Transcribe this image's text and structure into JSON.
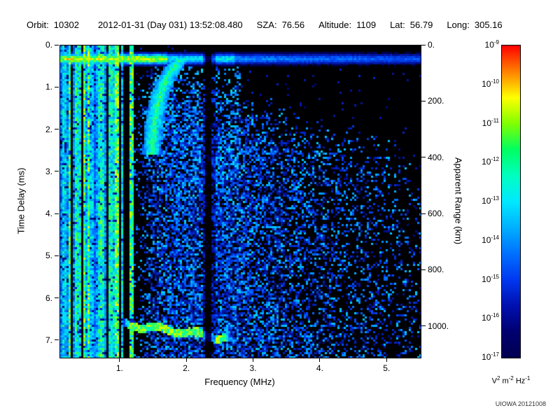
{
  "header": {
    "fields": [
      {
        "label": "Orbit:",
        "value": "10302"
      },
      {
        "label": "",
        "value": "2012-01-31 (Day 031) 13:52:08.480"
      },
      {
        "label": "SZA:",
        "value": "76.56"
      },
      {
        "label": "Altitude:",
        "value": "1109"
      },
      {
        "label": "Lat:",
        "value": "56.79"
      },
      {
        "label": "Long:",
        "value": "305.16"
      }
    ]
  },
  "chart_data": {
    "type": "heatmap",
    "title": "",
    "xlabel": "Frequency (MHz)",
    "ylabel_left": "Time Delay (ms)",
    "ylabel_right": "Apparent Range (km)",
    "x_range_mhz": [
      0.1,
      5.5
    ],
    "x_ticks": [
      {
        "value": 1,
        "label": "1."
      },
      {
        "value": 2,
        "label": "2."
      },
      {
        "value": 3,
        "label": "3."
      },
      {
        "value": 4,
        "label": "4."
      },
      {
        "value": 5,
        "label": "5."
      }
    ],
    "y_range_ms": [
      0,
      7.4
    ],
    "y_ticks_left": [
      {
        "value": 0,
        "label": "0."
      },
      {
        "value": 1,
        "label": "1."
      },
      {
        "value": 2,
        "label": "2."
      },
      {
        "value": 3,
        "label": "3."
      },
      {
        "value": 4,
        "label": "4."
      },
      {
        "value": 5,
        "label": "5."
      },
      {
        "value": 6,
        "label": "6."
      },
      {
        "value": 7,
        "label": "7."
      }
    ],
    "y_range_km": [
      0,
      1110
    ],
    "km_per_ms": 150,
    "y_ticks_right": [
      {
        "value": 0,
        "label": "0."
      },
      {
        "value": 200,
        "label": "200."
      },
      {
        "value": 400,
        "label": "400."
      },
      {
        "value": 600,
        "label": "600."
      },
      {
        "value": 800,
        "label": "800."
      },
      {
        "value": 1000,
        "label": "1000."
      }
    ],
    "colorbar": {
      "scale": "log",
      "base": "10",
      "tick_exponents": [
        "-9",
        "-10",
        "-11",
        "-12",
        "-13",
        "-14",
        "-15",
        "-16",
        "-17"
      ],
      "unit_parts": [
        [
          "V",
          false
        ],
        [
          "2",
          true
        ],
        [
          " m",
          false
        ],
        [
          "-2",
          true
        ],
        [
          " Hz",
          false
        ],
        [
          "-1",
          true
        ]
      ],
      "gradient": [
        "#ff0000",
        "#ff8000",
        "#ffff00",
        "#80ff00",
        "#00ff60",
        "#00ffc0",
        "#00e8ff",
        "#00b0ff",
        "#0070ff",
        "#0038f0",
        "#0010b0",
        "#000070",
        "#000050"
      ]
    },
    "features": {
      "plasma_oscillation_stripes": {
        "f_min_mhz": 0.1,
        "f_max_mhz": 1.45,
        "dense_below_mhz": 0.98
      },
      "first_echo_band": {
        "delay_ms": 0.32,
        "spans_full_frequency": true
      },
      "ionospheric_cusp_trace": {
        "f_asymptote_mhz": 1.45,
        "delay_top_ms": 0.3,
        "delay_bottom_ms": 2.6
      },
      "diffuse_echo_cloud": {
        "f_min_mhz": 1.2,
        "f_max_mhz": 5.5
      },
      "ground_reflection_trace": {
        "f_min_mhz": 1.02,
        "f_max_mhz": 2.68,
        "delay_start_ms": 6.6,
        "delay_end_ms": 6.95
      },
      "interference_notch_mhz": 2.33
    },
    "credit": "UIOWA 20121008"
  }
}
